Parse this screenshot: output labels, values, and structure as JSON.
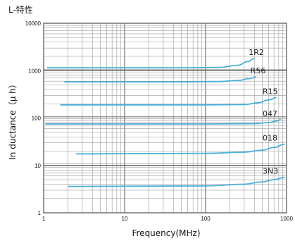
{
  "chart_data": {
    "type": "line",
    "title": "L-特性",
    "xlabel": "Frequency(MHz)",
    "ylabel": "In ductance（μ h）",
    "x_scale": "log",
    "y_scale": "log",
    "xlim": [
      1,
      1000
    ],
    "ylim": [
      1,
      10000
    ],
    "x_ticks": [
      {
        "value": 1,
        "label": "1"
      },
      {
        "value": 10,
        "label": "10"
      },
      {
        "value": 100,
        "label": "100"
      },
      {
        "value": 1000,
        "label": "1000"
      }
    ],
    "y_ticks": [
      {
        "value": 1,
        "label": "1"
      },
      {
        "value": 10,
        "label": "10"
      },
      {
        "value": 100,
        "label": "100"
      },
      {
        "value": 1000,
        "label": "1000"
      },
      {
        "value": 10000,
        "label": "10000"
      }
    ],
    "grid": true,
    "line_color": "#4ab0d8",
    "series": [
      {
        "name": "1R2",
        "points": [
          [
            1.1,
            1150
          ],
          [
            50,
            1150
          ],
          [
            150,
            1170
          ],
          [
            250,
            1300
          ],
          [
            330,
            1550
          ],
          [
            400,
            1800
          ]
        ]
      },
      {
        "name": "R56",
        "points": [
          [
            1.8,
            580
          ],
          [
            50,
            580
          ],
          [
            150,
            590
          ],
          [
            250,
            620
          ],
          [
            350,
            680
          ],
          [
            420,
            740
          ]
        ]
      },
      {
        "name": "R15",
        "points": [
          [
            1.6,
            190
          ],
          [
            100,
            190
          ],
          [
            300,
            192
          ],
          [
            450,
            210
          ],
          [
            600,
            240
          ],
          [
            750,
            270
          ]
        ]
      },
      {
        "name": "047",
        "points": [
          [
            1.05,
            75
          ],
          [
            100,
            75
          ],
          [
            400,
            76
          ],
          [
            600,
            80
          ],
          [
            750,
            86
          ],
          [
            850,
            92
          ]
        ]
      },
      {
        "name": "018",
        "points": [
          [
            2.5,
            17.5
          ],
          [
            100,
            18
          ],
          [
            300,
            19
          ],
          [
            500,
            21
          ],
          [
            700,
            24
          ],
          [
            950,
            28
          ]
        ]
      },
      {
        "name": "3N3",
        "points": [
          [
            2.0,
            3.6
          ],
          [
            100,
            3.7
          ],
          [
            300,
            4.0
          ],
          [
            500,
            4.5
          ],
          [
            700,
            5.0
          ],
          [
            950,
            5.6
          ]
        ]
      }
    ]
  }
}
